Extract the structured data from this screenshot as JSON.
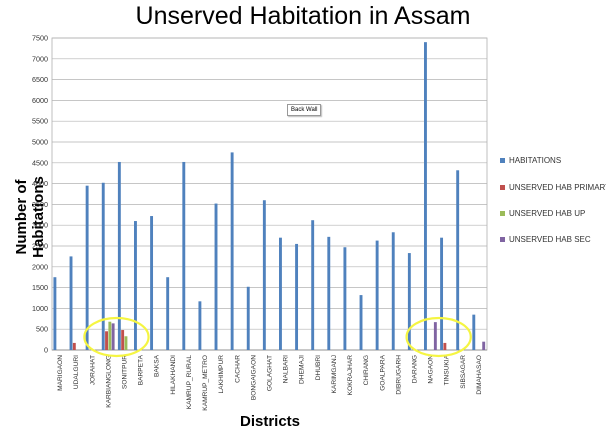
{
  "chart_data": {
    "type": "bar",
    "title": "Unserved Habitation in Assam",
    "xlabel": "Districts",
    "ylabel": "Number of Habitations",
    "ylim": [
      0,
      7500
    ],
    "yticks": [
      "0",
      "500",
      "1000",
      "1500",
      "2000",
      "2500",
      "3000",
      "3500",
      "4000",
      "4500",
      "5000",
      "5500",
      "6000",
      "6500",
      "7000",
      "7500"
    ],
    "grid": true,
    "legend": "right",
    "categories": [
      "MARIGAON",
      "UDALGURI",
      "JORAHAT",
      "KARBIANGLONG",
      "SONITPUR",
      "BARPETA",
      "BAKSA",
      "HILAKHANDI",
      "KAMRUP_RURAL",
      "KAMRUP_METRO",
      "LAKHIMPUR",
      "CACHAR",
      "BONGAIGAON",
      "GOLAGHAT",
      "NALBARI",
      "DHEMAJI",
      "DHUBRI",
      "KARIMGANJ",
      "KOKRAJHAR",
      "CHIRANG",
      "GOALPARA",
      "DIBRUGARH",
      "DARANG",
      "NAGAON",
      "TINSUKIA",
      "SIBSAGAR",
      "DIMAHASAO"
    ],
    "series": [
      {
        "name": "HABITATIONS",
        "color": "#4F81BD",
        "values": [
          1750,
          2250,
          3950,
          4020,
          4520,
          3100,
          3220,
          1750,
          4520,
          1170,
          3520,
          4750,
          1520,
          3600,
          2700,
          2550,
          3120,
          2720,
          2470,
          1320,
          2630,
          2830,
          2330,
          7400,
          2700,
          4320,
          850
        ]
      },
      {
        "name": "UNSERVED HAB PRIMARY",
        "color": "#C0504D",
        "values": [
          0,
          170,
          0,
          450,
          480,
          0,
          0,
          0,
          0,
          0,
          0,
          0,
          0,
          0,
          0,
          0,
          0,
          0,
          0,
          0,
          0,
          0,
          0,
          0,
          170,
          0,
          0
        ]
      },
      {
        "name": "UNSERVED HAB UP",
        "color": "#9BBB59",
        "values": [
          0,
          0,
          0,
          680,
          330,
          0,
          0,
          0,
          0,
          0,
          0,
          0,
          0,
          0,
          0,
          0,
          0,
          0,
          0,
          0,
          0,
          0,
          0,
          0,
          0,
          0,
          0
        ]
      },
      {
        "name": "UNSERVED HAB SEC",
        "color": "#8064A2",
        "values": [
          0,
          0,
          0,
          640,
          0,
          0,
          0,
          0,
          0,
          0,
          0,
          0,
          0,
          0,
          0,
          0,
          0,
          0,
          0,
          0,
          0,
          0,
          0,
          670,
          0,
          0,
          200
        ]
      }
    ],
    "annotations": [
      {
        "type": "ellipse",
        "color": "#F5F542",
        "categories": [
          "KARBIANGLONG",
          "SONITPUR"
        ]
      },
      {
        "type": "ellipse",
        "color": "#F5F542",
        "categories": [
          "NAGAON",
          "TINSUKIA"
        ]
      }
    ]
  },
  "tooltip_text": "Back Wall"
}
